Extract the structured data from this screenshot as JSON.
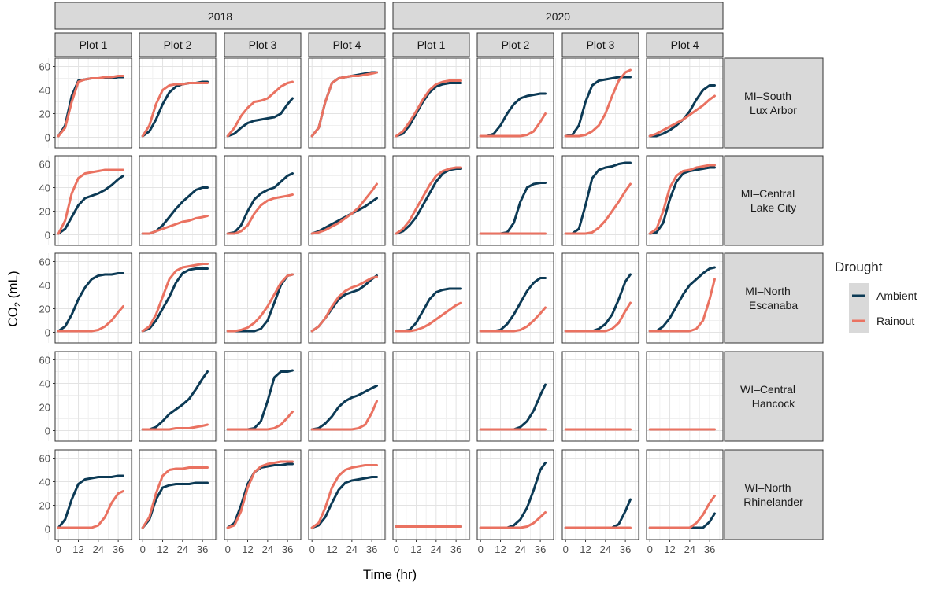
{
  "chart_data": {
    "type": "line",
    "xlabel": "Time (hr)",
    "ylabel": "CO2 (mL)",
    "xlim": [
      -2,
      44
    ],
    "ylim": [
      -9,
      67
    ],
    "xticks": [
      0,
      12,
      24,
      36
    ],
    "yticks": [
      0,
      20,
      40,
      60
    ],
    "grid": true,
    "legend": {
      "title": "Drought",
      "placement": "right",
      "entries": [
        "Ambient",
        "Rainout"
      ]
    },
    "colors": {
      "Ambient": "#0c3a55",
      "Rainout": "#ea7261",
      "strip": "#d9d9d9"
    },
    "years": [
      "2018",
      "2020"
    ],
    "plots": [
      "Plot 1",
      "Plot 2",
      "Plot 3",
      "Plot 4"
    ],
    "sites": [
      [
        "MI–South",
        "Lux Arbor"
      ],
      [
        "MI–Central",
        "Lake City"
      ],
      [
        "MI–North",
        "Escanaba"
      ],
      [
        "WI–Central",
        "Hancock"
      ],
      [
        "WI–North",
        "Rhinelander"
      ]
    ],
    "x": [
      0,
      4,
      8,
      12,
      16,
      20,
      24,
      28,
      32,
      36,
      39
    ],
    "panels": [
      [
        {
          "Ambient": [
            1,
            10,
            35,
            48,
            49,
            50,
            50,
            50,
            50,
            51,
            51
          ],
          "Rainout": [
            1,
            8,
            30,
            47,
            49,
            50,
            50,
            51,
            51,
            52,
            52
          ]
        },
        {
          "Ambient": [
            1,
            5,
            15,
            28,
            38,
            43,
            45,
            46,
            46,
            47,
            47
          ],
          "Rainout": [
            1,
            10,
            28,
            40,
            44,
            45,
            45,
            46,
            46,
            46,
            46
          ]
        },
        {
          "Ambient": [
            1,
            3,
            8,
            12,
            14,
            15,
            16,
            17,
            20,
            28,
            33
          ],
          "Rainout": [
            1,
            8,
            18,
            25,
            30,
            31,
            33,
            38,
            43,
            46,
            47
          ]
        },
        {
          "Ambient": [
            1,
            8,
            30,
            46,
            50,
            51,
            52,
            53,
            54,
            55,
            55
          ],
          "Rainout": [
            1,
            8,
            30,
            46,
            50,
            51,
            52,
            52,
            53,
            54,
            55
          ]
        },
        {
          "Ambient": [
            1,
            3,
            10,
            20,
            30,
            38,
            43,
            45,
            46,
            46,
            46
          ],
          "Rainout": [
            1,
            5,
            13,
            22,
            32,
            40,
            45,
            47,
            48,
            48,
            48
          ]
        },
        {
          "Ambient": [
            1,
            1,
            3,
            10,
            20,
            28,
            33,
            35,
            36,
            37,
            37
          ],
          "Rainout": [
            1,
            1,
            1,
            1,
            1,
            1,
            1,
            2,
            5,
            13,
            20
          ]
        },
        {
          "Ambient": [
            1,
            2,
            10,
            30,
            44,
            48,
            49,
            50,
            51,
            51,
            51
          ],
          "Rainout": [
            1,
            1,
            1,
            2,
            5,
            10,
            20,
            35,
            48,
            55,
            57
          ]
        },
        {
          "Ambient": [
            1,
            1,
            3,
            6,
            10,
            15,
            22,
            32,
            40,
            44,
            44
          ],
          "Rainout": [
            1,
            3,
            6,
            9,
            12,
            15,
            19,
            23,
            27,
            32,
            35
          ]
        }
      ],
      [
        {
          "Ambient": [
            1,
            5,
            15,
            25,
            31,
            33,
            35,
            38,
            42,
            47,
            50
          ],
          "Rainout": [
            1,
            12,
            35,
            48,
            52,
            53,
            54,
            55,
            55,
            55,
            55
          ]
        },
        {
          "Ambient": [
            1,
            1,
            3,
            8,
            15,
            22,
            28,
            33,
            38,
            40,
            40
          ],
          "Rainout": [
            1,
            1,
            3,
            5,
            7,
            9,
            11,
            12,
            14,
            15,
            16
          ]
        },
        {
          "Ambient": [
            1,
            2,
            8,
            20,
            30,
            35,
            38,
            40,
            45,
            50,
            52
          ],
          "Rainout": [
            1,
            1,
            3,
            8,
            18,
            25,
            29,
            31,
            32,
            33,
            34
          ]
        },
        {
          "Ambient": [
            1,
            3,
            6,
            9,
            12,
            15,
            18,
            21,
            24,
            28,
            31
          ],
          "Rainout": [
            1,
            2,
            4,
            7,
            10,
            14,
            18,
            23,
            30,
            37,
            43
          ]
        },
        {
          "Ambient": [
            1,
            3,
            8,
            15,
            25,
            35,
            45,
            52,
            55,
            56,
            56
          ],
          "Rainout": [
            1,
            5,
            12,
            22,
            32,
            42,
            50,
            54,
            56,
            57,
            57
          ]
        },
        {
          "Ambient": [
            1,
            1,
            1,
            1,
            2,
            10,
            28,
            40,
            43,
            44,
            44
          ],
          "Rainout": [
            1,
            1,
            1,
            1,
            1,
            1,
            1,
            1,
            1,
            1,
            1
          ]
        },
        {
          "Ambient": [
            1,
            1,
            5,
            25,
            48,
            55,
            57,
            58,
            60,
            61,
            61
          ],
          "Rainout": [
            1,
            1,
            1,
            1,
            2,
            6,
            12,
            20,
            28,
            37,
            43
          ]
        },
        {
          "Ambient": [
            1,
            2,
            10,
            30,
            45,
            52,
            54,
            55,
            56,
            57,
            57
          ],
          "Rainout": [
            1,
            5,
            20,
            40,
            50,
            54,
            55,
            57,
            58,
            59,
            59
          ]
        }
      ],
      [
        {
          "Ambient": [
            1,
            5,
            15,
            28,
            38,
            45,
            48,
            49,
            49,
            50,
            50
          ],
          "Rainout": [
            1,
            1,
            1,
            1,
            1,
            1,
            2,
            5,
            10,
            17,
            22
          ]
        },
        {
          "Ambient": [
            1,
            3,
            10,
            20,
            30,
            42,
            50,
            53,
            54,
            54,
            54
          ],
          "Rainout": [
            1,
            5,
            15,
            30,
            45,
            52,
            55,
            56,
            57,
            58,
            58
          ]
        },
        {
          "Ambient": [
            1,
            1,
            1,
            1,
            1,
            3,
            10,
            25,
            40,
            48,
            49
          ],
          "Rainout": [
            1,
            1,
            2,
            4,
            8,
            14,
            22,
            32,
            42,
            48,
            49
          ]
        },
        {
          "Ambient": [
            1,
            5,
            12,
            20,
            28,
            32,
            34,
            36,
            40,
            45,
            48
          ],
          "Rainout": [
            1,
            5,
            12,
            22,
            30,
            35,
            38,
            40,
            43,
            46,
            47
          ]
        },
        {
          "Ambient": [
            1,
            1,
            2,
            8,
            18,
            28,
            34,
            36,
            37,
            37,
            37
          ],
          "Rainout": [
            1,
            1,
            1,
            2,
            4,
            7,
            11,
            15,
            19,
            23,
            25
          ]
        },
        {
          "Ambient": [
            1,
            1,
            1,
            2,
            7,
            15,
            25,
            35,
            42,
            46,
            46
          ],
          "Rainout": [
            1,
            1,
            1,
            1,
            1,
            1,
            2,
            5,
            10,
            16,
            21
          ]
        },
        {
          "Ambient": [
            1,
            1,
            1,
            1,
            1,
            3,
            7,
            15,
            28,
            43,
            49
          ],
          "Rainout": [
            1,
            1,
            1,
            1,
            1,
            1,
            1,
            3,
            8,
            18,
            25
          ]
        },
        {
          "Ambient": [
            1,
            1,
            5,
            12,
            22,
            32,
            40,
            45,
            50,
            54,
            55
          ],
          "Rainout": [
            1,
            1,
            1,
            1,
            1,
            1,
            1,
            3,
            10,
            28,
            45
          ]
        }
      ],
      [
        {},
        {
          "Ambient": [
            1,
            1,
            3,
            8,
            14,
            18,
            22,
            27,
            35,
            44,
            50
          ],
          "Rainout": [
            1,
            1,
            1,
            1,
            1,
            2,
            2,
            2,
            3,
            4,
            5
          ]
        },
        {
          "Ambient": [
            1,
            1,
            1,
            1,
            2,
            8,
            25,
            45,
            50,
            50,
            51
          ],
          "Rainout": [
            1,
            1,
            1,
            1,
            1,
            1,
            1,
            2,
            5,
            11,
            16
          ]
        },
        {
          "Ambient": [
            1,
            2,
            6,
            12,
            20,
            25,
            28,
            30,
            33,
            36,
            38
          ],
          "Rainout": [
            1,
            1,
            1,
            1,
            1,
            1,
            1,
            2,
            5,
            15,
            25
          ]
        },
        {},
        {
          "Ambient": [
            1,
            1,
            1,
            1,
            1,
            1,
            3,
            8,
            17,
            30,
            39
          ],
          "Rainout": [
            1,
            1,
            1,
            1,
            1,
            1,
            1,
            1,
            1,
            1,
            1
          ]
        },
        {
          "Rainout": [
            1,
            1,
            1,
            1,
            1,
            1,
            1,
            1,
            1,
            1,
            1
          ]
        },
        {
          "Rainout": [
            1,
            1,
            1,
            1,
            1,
            1,
            1,
            1,
            1,
            1,
            1
          ]
        }
      ],
      [
        {
          "Ambient": [
            1,
            8,
            25,
            38,
            42,
            43,
            44,
            44,
            44,
            45,
            45
          ],
          "Rainout": [
            1,
            1,
            1,
            1,
            1,
            1,
            3,
            10,
            22,
            30,
            32
          ]
        },
        {
          "Ambient": [
            1,
            8,
            25,
            35,
            37,
            38,
            38,
            38,
            39,
            39,
            39
          ],
          "Rainout": [
            1,
            10,
            30,
            45,
            50,
            51,
            51,
            52,
            52,
            52,
            52
          ]
        },
        {
          "Ambient": [
            1,
            5,
            20,
            38,
            48,
            52,
            53,
            54,
            54,
            55,
            55
          ],
          "Rainout": [
            1,
            3,
            15,
            35,
            48,
            53,
            55,
            56,
            57,
            57,
            57
          ]
        },
        {
          "Ambient": [
            1,
            3,
            10,
            22,
            33,
            39,
            41,
            42,
            43,
            44,
            44
          ],
          "Rainout": [
            1,
            5,
            18,
            35,
            45,
            50,
            52,
            53,
            54,
            54,
            54
          ]
        },
        {
          "Ambient": [
            2,
            2,
            2,
            2,
            2,
            2,
            2,
            2,
            2,
            2,
            2
          ],
          "Rainout": [
            2,
            2,
            2,
            2,
            2,
            2,
            2,
            2,
            2,
            2,
            2
          ]
        },
        {
          "Ambient": [
            1,
            1,
            1,
            1,
            1,
            3,
            8,
            18,
            33,
            50,
            56
          ],
          "Rainout": [
            1,
            1,
            1,
            1,
            1,
            1,
            1,
            2,
            5,
            10,
            14
          ]
        },
        {
          "Ambient": [
            1,
            1,
            1,
            1,
            1,
            1,
            1,
            1,
            4,
            15,
            25
          ],
          "Rainout": [
            1,
            1,
            1,
            1,
            1,
            1,
            1,
            1,
            1,
            1,
            1
          ]
        },
        {
          "Ambient": [
            1,
            1,
            1,
            1,
            1,
            1,
            1,
            1,
            1,
            6,
            13
          ],
          "Rainout": [
            1,
            1,
            1,
            1,
            1,
            1,
            1,
            5,
            12,
            22,
            28
          ]
        }
      ]
    ]
  }
}
